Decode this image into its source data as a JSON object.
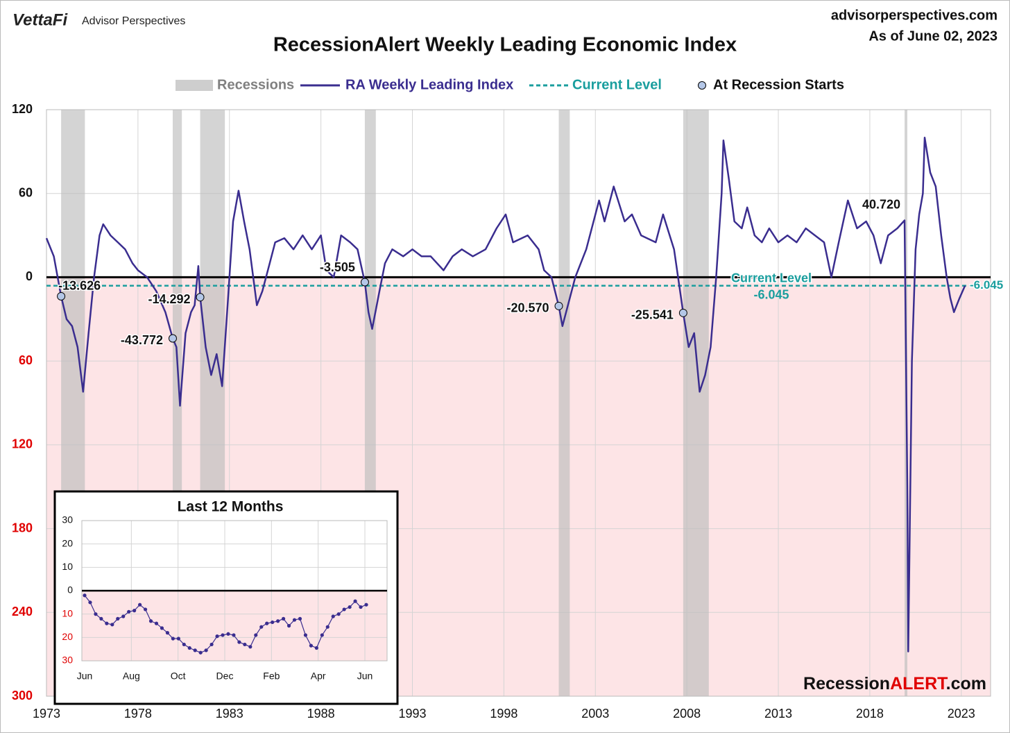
{
  "header": {
    "logo": "VettaFi",
    "brand": "Advisor Perspectives",
    "site": "advisorperspectives.com",
    "date": "As of June 02, 2023",
    "watermark": [
      "Recession",
      "ALERT",
      ".com"
    ]
  },
  "chart_data": [
    {
      "type": "line",
      "title": "RecessionAlert Weekly Leading Economic Index",
      "xlim": [
        1973,
        2024.6
      ],
      "xticks": [
        1973,
        1978,
        1983,
        1988,
        1993,
        1998,
        2003,
        2008,
        2013,
        2018,
        2023
      ],
      "ylim": [
        -300,
        120
      ],
      "yticks": [
        120,
        60,
        0,
        {
          "value": -60,
          "label": "60"
        },
        {
          "value": -120,
          "label": "120"
        },
        {
          "value": -180,
          "label": "180"
        },
        {
          "value": -240,
          "label": "240"
        },
        {
          "value": -300,
          "label": "300"
        }
      ],
      "negative_tick_color": "#e00000",
      "below_zero_fill": "#fde4e6",
      "grid": true,
      "recessions": {
        "name": "Recessions",
        "color": "#bdbdbd",
        "ranges": [
          [
            1973.8,
            1975.1
          ],
          [
            1979.9,
            1980.4
          ],
          [
            1981.4,
            1982.75
          ],
          [
            1990.4,
            1991.0
          ],
          [
            2001.0,
            2001.6
          ],
          [
            2007.8,
            2009.2
          ],
          [
            2019.9,
            2020.05
          ]
        ]
      },
      "series": [
        {
          "name": "RA Weekly Leading Index",
          "color": "#3a2d8f",
          "x": [
            1973.0,
            1973.4,
            1973.8,
            1974.1,
            1974.4,
            1974.7,
            1975.0,
            1975.3,
            1975.6,
            1975.9,
            1976.1,
            1976.5,
            1976.9,
            1977.3,
            1977.7,
            1978.0,
            1978.5,
            1979.0,
            1979.5,
            1979.9,
            1980.1,
            1980.3,
            1980.6,
            1980.9,
            1981.1,
            1981.3,
            1981.4,
            1981.7,
            1982.0,
            1982.3,
            1982.6,
            1982.9,
            1983.2,
            1983.5,
            1983.8,
            1984.1,
            1984.5,
            1984.8,
            1985.2,
            1985.5,
            1986.0,
            1986.5,
            1987.0,
            1987.5,
            1988.0,
            1988.3,
            1988.7,
            1989.1,
            1989.6,
            1990.0,
            1990.4,
            1990.6,
            1990.8,
            1991.2,
            1991.5,
            1991.9,
            1992.5,
            1993.0,
            1993.5,
            1994.0,
            1994.7,
            1995.2,
            1995.7,
            1996.3,
            1997.0,
            1997.6,
            1998.1,
            1998.5,
            1999.3,
            1999.9,
            2000.2,
            2000.6,
            2001.0,
            2001.2,
            2001.6,
            2001.9,
            2002.5,
            2003.2,
            2003.5,
            2004.0,
            2004.6,
            2005.0,
            2005.5,
            2006.3,
            2006.7,
            2007.3,
            2007.8,
            2008.1,
            2008.4,
            2008.7,
            2009.0,
            2009.3,
            2009.6,
            2009.9,
            2010.0,
            2010.3,
            2010.6,
            2011.0,
            2011.3,
            2011.7,
            2012.1,
            2012.5,
            2013.0,
            2013.5,
            2014.0,
            2014.5,
            2015.0,
            2015.5,
            2015.9,
            2016.3,
            2016.8,
            2017.3,
            2017.8,
            2018.2,
            2018.6,
            2019.0,
            2019.5,
            2019.9,
            2020.05,
            2020.1,
            2020.3,
            2020.5,
            2020.7,
            2020.9,
            2021.0,
            2021.3,
            2021.6,
            2021.9,
            2022.2,
            2022.4,
            2022.6,
            2022.9,
            2023.2
          ],
          "values": [
            28,
            15,
            -13.626,
            -30,
            -35,
            -50,
            -82,
            -40,
            0,
            30,
            38,
            30,
            25,
            20,
            10,
            5,
            0,
            -10,
            -25,
            -43.772,
            -50,
            -92,
            -40,
            -25,
            -20,
            8,
            -14.292,
            -50,
            -70,
            -55,
            -78,
            -20,
            40,
            62,
            40,
            20,
            -20,
            -10,
            10,
            25,
            28,
            20,
            30,
            20,
            30,
            5,
            0,
            30,
            25,
            20,
            -3.505,
            -25,
            -37,
            -10,
            10,
            20,
            15,
            20,
            15,
            15,
            5,
            15,
            20,
            15,
            20,
            35,
            45,
            25,
            30,
            20,
            5,
            0,
            -20.57,
            -35,
            -15,
            0,
            20,
            55,
            40,
            65,
            40,
            45,
            30,
            25,
            45,
            20,
            -25.541,
            -50,
            -40,
            -82,
            -70,
            -50,
            0,
            60,
            98,
            70,
            40,
            35,
            50,
            30,
            25,
            35,
            25,
            30,
            25,
            35,
            30,
            25,
            0,
            25,
            55,
            35,
            40,
            30,
            10,
            30,
            35,
            40.72,
            -150,
            -268,
            -60,
            20,
            45,
            60,
            100,
            75,
            65,
            30,
            0,
            -15,
            -25,
            -15,
            -6.045
          ]
        },
        {
          "name": "At Recession Starts",
          "color": "#b4c7e7",
          "x": [
            1973.8,
            1979.9,
            1981.4,
            1990.4,
            2001.0,
            2007.8
          ],
          "values": [
            -13.626,
            -43.772,
            -14.292,
            -3.505,
            -20.57,
            -25.541
          ],
          "value_labels": [
            "-13.626",
            "-43.772",
            "-14.292",
            "-3.505",
            "-20.570",
            "-25.541"
          ]
        },
        {
          "name": "Current Level",
          "color": "#1a9e9e",
          "values": [
            -6.045
          ],
          "value_labels": [
            "-6.045"
          ]
        }
      ],
      "annotations": [
        {
          "x": 2019.9,
          "value": 40.72,
          "label": "40.720"
        }
      ]
    },
    {
      "type": "line",
      "title": "Last 12 Months",
      "xtick_labels": [
        "Jun",
        "Aug",
        "Oct",
        "Dec",
        "Feb",
        "Apr",
        "Jun"
      ],
      "ylim": [
        -30,
        30
      ],
      "yticks": [
        30,
        20,
        10,
        0,
        {
          "value": -10,
          "label": "10"
        },
        {
          "value": -20,
          "label": "20"
        },
        {
          "value": -30,
          "label": "30"
        }
      ],
      "color": "#3a2d8f",
      "values": [
        -2,
        -5,
        -10,
        -12,
        -14,
        -14.5,
        -12,
        -11,
        -9,
        -8.5,
        -6,
        -8,
        -13,
        -14,
        -16,
        -18,
        -20.5,
        -20.5,
        -23,
        -24.5,
        -25.5,
        -26.5,
        -25.5,
        -23,
        -19.5,
        -19,
        -18.5,
        -19,
        -22,
        -23,
        -24,
        -19,
        -15.5,
        -14,
        -13.5,
        -13,
        -12,
        -15,
        -12.5,
        -12,
        -19,
        -23.5,
        -24.5,
        -19,
        -15.5,
        -11,
        -10,
        -8,
        -7,
        -4.5,
        -7,
        -6
      ]
    }
  ]
}
